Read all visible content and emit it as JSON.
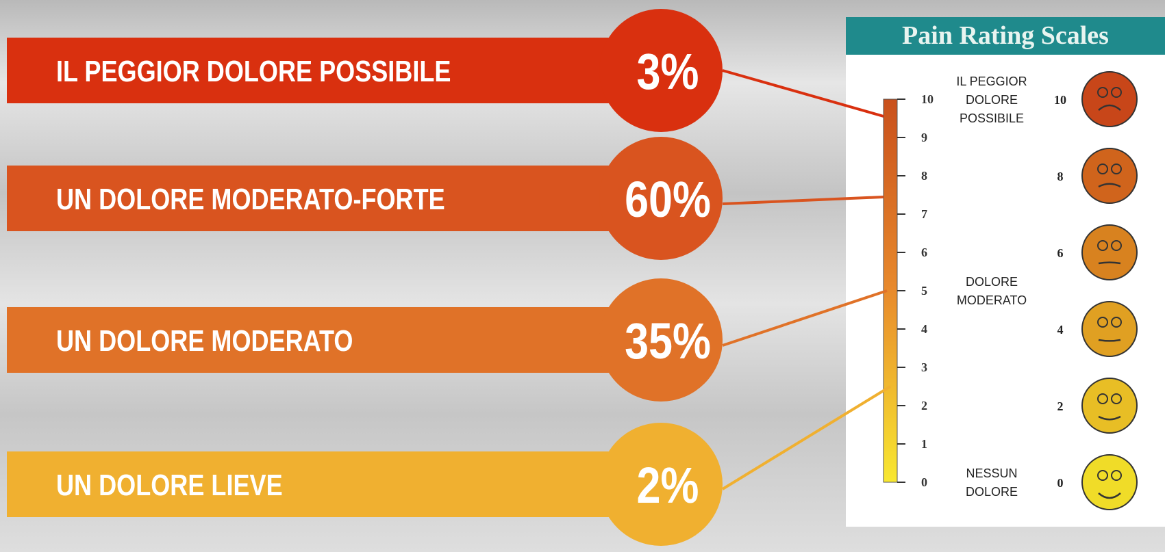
{
  "rows": [
    {
      "label": "IL PEGGIOR DOLORE POSSIBILE",
      "percent": "3%"
    },
    {
      "label": "UN DOLORE MODERATO-FORTE",
      "percent": "60%"
    },
    {
      "label": "UN DOLORE MODERATO",
      "percent": "35%"
    },
    {
      "label": "UN DOLORE LIEVE",
      "percent": "2%"
    }
  ],
  "scale": {
    "title": "Pain Rating Scales",
    "ticks": [
      0,
      1,
      2,
      3,
      4,
      5,
      6,
      7,
      8,
      9,
      10
    ],
    "annotations": [
      {
        "at": 10,
        "lines": [
          "IL PEGGIOR",
          "DOLORE",
          "POSSIBILE"
        ]
      },
      {
        "at": 5,
        "lines": [
          "DOLORE",
          "MODERATO"
        ]
      },
      {
        "at": 0,
        "lines": [
          "NESSUN",
          "DOLORE"
        ]
      }
    ],
    "faces": [
      10,
      8,
      6,
      4,
      2,
      0
    ]
  }
}
